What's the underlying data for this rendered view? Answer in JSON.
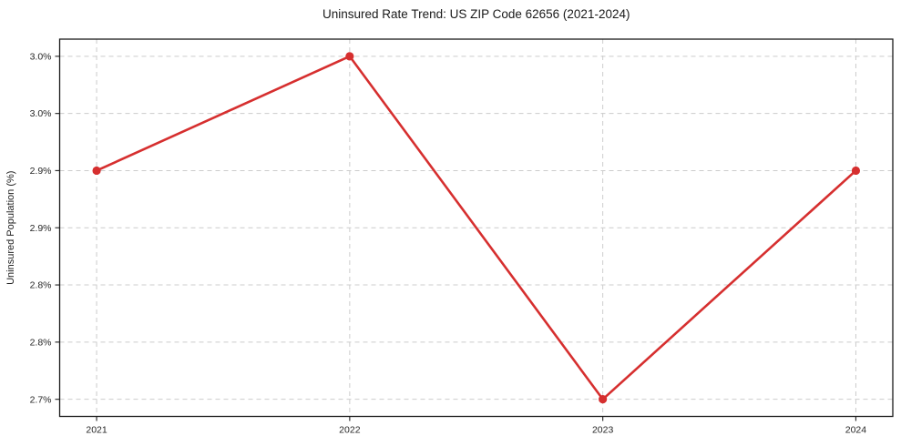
{
  "chart_data": {
    "type": "line",
    "title": "Uninsured Rate Trend: US ZIP Code 62656 (2021-2024)",
    "xlabel": "",
    "ylabel": "Uninsured Population (%)",
    "x": [
      2021,
      2022,
      2023,
      2024
    ],
    "xtick_labels": [
      "2021",
      "2022",
      "2023",
      "2024"
    ],
    "series": [
      {
        "name": "Uninsured rate",
        "values": [
          2.9,
          3.0,
          2.7,
          2.9
        ],
        "color": "#d62f2f"
      }
    ],
    "ytick_values": [
      2.7,
      2.75,
      2.8,
      2.85,
      2.9,
      2.95,
      3.0
    ],
    "ytick_labels": [
      "2.7%",
      "2.8%",
      "2.8%",
      "2.9%",
      "2.9%",
      "3.0%",
      "3.0%"
    ],
    "xlim": [
      2020.854,
      2024.146
    ],
    "ylim": [
      2.685,
      3.015
    ],
    "grid": true,
    "grid_style": "dashed",
    "legend_position": "none",
    "colors": {
      "line": "#d62f2f",
      "marker": "#d62f2f",
      "grid": "#cccccc",
      "spine": "#1a1a1a",
      "tick": "#333333",
      "background": "#ffffff"
    }
  }
}
